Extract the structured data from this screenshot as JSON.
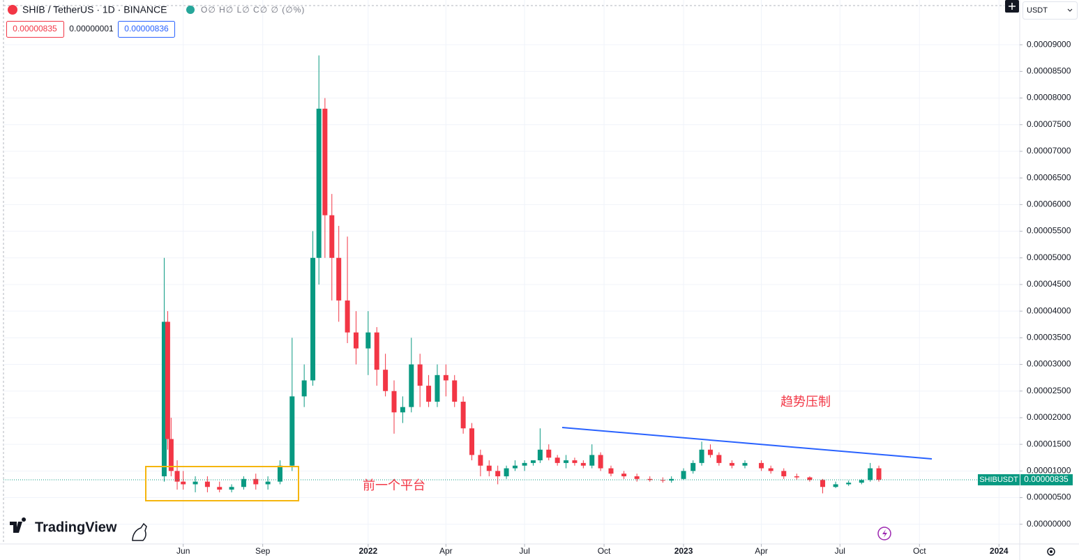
{
  "header": {
    "symbol": "SHIB / TetherUS · 1D · BINANCE",
    "ohlc": "O∅ H∅ L∅ C∅ ∅ (∅%)",
    "sell_price": "0.00000835",
    "spread": "0.00000001",
    "buy_price": "0.00000836",
    "currency": "USDT",
    "logo": "TradingView"
  },
  "chart_data": {
    "type": "candlestick",
    "x": [
      -22,
      -18,
      -14,
      -7,
      0,
      14,
      28,
      42,
      56,
      70,
      84,
      98,
      112,
      126,
      140,
      150,
      157,
      164,
      172,
      180,
      190,
      200,
      214,
      224,
      234,
      244,
      254,
      264,
      274,
      284,
      294,
      304,
      314,
      324,
      334,
      344,
      354,
      364,
      374,
      384,
      395,
      405,
      413,
      423,
      433,
      443,
      453,
      463,
      473,
      483,
      495,
      510,
      525,
      540,
      555,
      565,
      579,
      590,
      600,
      610,
      620,
      635,
      650,
      669,
      680,
      695,
      710,
      725,
      740,
      755,
      770,
      785,
      795,
      805
    ],
    "open": [
      9e-06,
      3.8e-05,
      1.6e-05,
      1e-05,
      8e-06,
      7.5e-06,
      8e-06,
      7e-06,
      6.5e-06,
      7e-06,
      8.5e-06,
      7.5e-06,
      8e-06,
      1.1e-05,
      2.4e-05,
      2.7e-05,
      5e-05,
      7.8e-05,
      5.8e-05,
      5e-05,
      4.2e-05,
      3.6e-05,
      3.3e-05,
      3.6e-05,
      2.9e-05,
      2.5e-05,
      2.1e-05,
      2.2e-05,
      3e-05,
      2.6e-05,
      2.3e-05,
      2.8e-05,
      2.7e-05,
      2.3e-05,
      1.8e-05,
      1.3e-05,
      1.1e-05,
      1e-05,
      9e-06,
      1.05e-05,
      1.1e-05,
      1.15e-05,
      1.2e-05,
      1.4e-05,
      1.25e-05,
      1.15e-05,
      1.2e-05,
      1.15e-05,
      1.1e-05,
      1.3e-05,
      1.05e-05,
      9.5e-06,
      9e-06,
      8.5e-06,
      8.3e-06,
      8.2e-06,
      8.5e-06,
      1e-05,
      1.15e-05,
      1.4e-05,
      1.3e-05,
      1.15e-05,
      1.1e-05,
      1.15e-05,
      1.05e-05,
      1e-05,
      9e-06,
      8.8e-06,
      8.3e-06,
      7e-06,
      7.5e-06,
      7.8e-06,
      8.3e-06,
      1.05e-05
    ],
    "high": [
      5e-05,
      4e-05,
      2e-05,
      1.2e-05,
      1e-05,
      9e-06,
      9e-06,
      8e-06,
      7.5e-06,
      9e-06,
      9.5e-06,
      9e-06,
      1.2e-05,
      3.5e-05,
      3e-05,
      5.5e-05,
      8.8e-05,
      8e-05,
      6.2e-05,
      5.6e-05,
      5.4e-05,
      4e-05,
      4e-05,
      3.7e-05,
      3.2e-05,
      2.7e-05,
      2.4e-05,
      3.5e-05,
      3.2e-05,
      2.8e-05,
      3e-05,
      3e-05,
      2.8e-05,
      2.4e-05,
      1.9e-05,
      1.4e-05,
      1.2e-05,
      1.1e-05,
      1.1e-05,
      1.2e-05,
      1.2e-05,
      1.2e-05,
      1.8e-05,
      1.5e-05,
      1.3e-05,
      1.3e-05,
      1.25e-05,
      1.2e-05,
      1.5e-05,
      1.35e-05,
      1.1e-05,
      1e-05,
      9.5e-06,
      9e-06,
      8.8e-06,
      9e-06,
      1.05e-05,
      1.2e-05,
      1.55e-05,
      1.5e-05,
      1.35e-05,
      1.2e-05,
      1.2e-05,
      1.2e-05,
      1.1e-05,
      1.05e-05,
      9.5e-06,
      9e-06,
      8.5e-06,
      8e-06,
      8.2e-06,
      8.5e-06,
      1.15e-05,
      1.1e-05
    ],
    "low": [
      8e-06,
      1.4e-05,
      9e-06,
      6.5e-06,
      6.5e-06,
      6e-06,
      6e-06,
      6e-06,
      6e-06,
      6.5e-06,
      6.5e-06,
      6.5e-06,
      7.5e-06,
      1e-05,
      2.2e-05,
      2.6e-05,
      4.5e-05,
      5e-05,
      4.2e-05,
      3.8e-05,
      3.4e-05,
      3e-05,
      2.8e-05,
      2.6e-05,
      2.4e-05,
      1.7e-05,
      1.9e-05,
      2.1e-05,
      2.2e-05,
      2.2e-05,
      2.2e-05,
      2.4e-05,
      2.2e-05,
      1.7e-05,
      1.2e-05,
      9e-06,
      9e-06,
      7.5e-06,
      8.5e-06,
      1e-05,
      1e-05,
      1.1e-05,
      1.15e-05,
      1.2e-05,
      1.1e-05,
      1.05e-05,
      1.1e-05,
      1.05e-05,
      1.05e-05,
      1e-05,
      9e-06,
      8.5e-06,
      8e-06,
      8e-06,
      7.8e-06,
      7.8e-06,
      8.3e-06,
      9.5e-06,
      1.1e-05,
      1.25e-05,
      1.1e-05,
      1.05e-05,
      1.05e-05,
      1e-05,
      9.5e-06,
      8.5e-06,
      8.3e-06,
      8e-06,
      5.8e-06,
      6.8e-06,
      7.2e-06,
      7.5e-06,
      8e-06,
      8e-06
    ],
    "close": [
      3.8e-05,
      1.6e-05,
      1e-05,
      8e-06,
      7.5e-06,
      8e-06,
      7e-06,
      6.5e-06,
      7e-06,
      8.5e-06,
      7.5e-06,
      8e-06,
      1.1e-05,
      2.4e-05,
      2.7e-05,
      5e-05,
      7.8e-05,
      5.8e-05,
      5e-05,
      4.2e-05,
      3.6e-05,
      3.3e-05,
      3.6e-05,
      2.9e-05,
      2.5e-05,
      2.1e-05,
      2.2e-05,
      3e-05,
      2.6e-05,
      2.3e-05,
      2.8e-05,
      2.7e-05,
      2.3e-05,
      1.8e-05,
      1.3e-05,
      1.1e-05,
      1e-05,
      9e-06,
      1.05e-05,
      1.1e-05,
      1.15e-05,
      1.2e-05,
      1.4e-05,
      1.25e-05,
      1.15e-05,
      1.2e-05,
      1.15e-05,
      1.1e-05,
      1.3e-05,
      1.05e-05,
      9.5e-06,
      9e-06,
      8.5e-06,
      8.3e-06,
      8.2e-06,
      8.5e-06,
      1e-05,
      1.15e-05,
      1.4e-05,
      1.3e-05,
      1.15e-05,
      1.1e-05,
      1.15e-05,
      1.05e-05,
      1e-05,
      9e-06,
      8.8e-06,
      8.3e-06,
      7e-06,
      7.5e-06,
      7.8e-06,
      8.3e-06,
      1.05e-05,
      8.35e-06
    ],
    "up_color": "#089981",
    "down_color": "#f23645",
    "xlim": [
      -208,
      968
    ],
    "xticks": [
      {
        "value": 0,
        "label": "Jun"
      },
      {
        "value": 92,
        "label": "Sep"
      },
      {
        "value": 214,
        "label": "2022"
      },
      {
        "value": 304,
        "label": "Apr"
      },
      {
        "value": 395,
        "label": "Jul"
      },
      {
        "value": 487,
        "label": "Oct"
      },
      {
        "value": 579,
        "label": "2023"
      },
      {
        "value": 669,
        "label": "Apr"
      },
      {
        "value": 760,
        "label": "Jul"
      },
      {
        "value": 852,
        "label": "Oct"
      },
      {
        "value": 944,
        "label": "2024"
      }
    ],
    "ylim": [
      -3.7e-06,
      9.84e-05
    ],
    "yticks": [
      {
        "value": 0,
        "label": "0.00000000"
      },
      {
        "value": 5e-06,
        "label": "0.00000500"
      },
      {
        "value": 1e-05,
        "label": "0.00001000"
      },
      {
        "value": 1.5e-05,
        "label": "0.00001500"
      },
      {
        "value": 2e-05,
        "label": "0.00002000"
      },
      {
        "value": 2.5e-05,
        "label": "0.00002500"
      },
      {
        "value": 3e-05,
        "label": "0.00003000"
      },
      {
        "value": 3.5e-05,
        "label": "0.00003500"
      },
      {
        "value": 4e-05,
        "label": "0.00004000"
      },
      {
        "value": 4.5e-05,
        "label": "0.00004500"
      },
      {
        "value": 5e-05,
        "label": "0.00005000"
      },
      {
        "value": 5.5e-05,
        "label": "0.00005500"
      },
      {
        "value": 6e-05,
        "label": "0.00006000"
      },
      {
        "value": 6.5e-05,
        "label": "0.00006500"
      },
      {
        "value": 7e-05,
        "label": "0.00007000"
      },
      {
        "value": 7.5e-05,
        "label": "0.00007500"
      },
      {
        "value": 8e-05,
        "label": "0.00008000"
      },
      {
        "value": 8.5e-05,
        "label": "0.00008500"
      },
      {
        "value": 9e-05,
        "label": "0.00009000"
      }
    ],
    "grid": true,
    "last_price": {
      "value": 8.35e-06,
      "label": "0.00000835"
    },
    "symbol_tag": "SHIBUSDT",
    "annotations": [
      "趋势压制",
      "前一个平台"
    ]
  }
}
